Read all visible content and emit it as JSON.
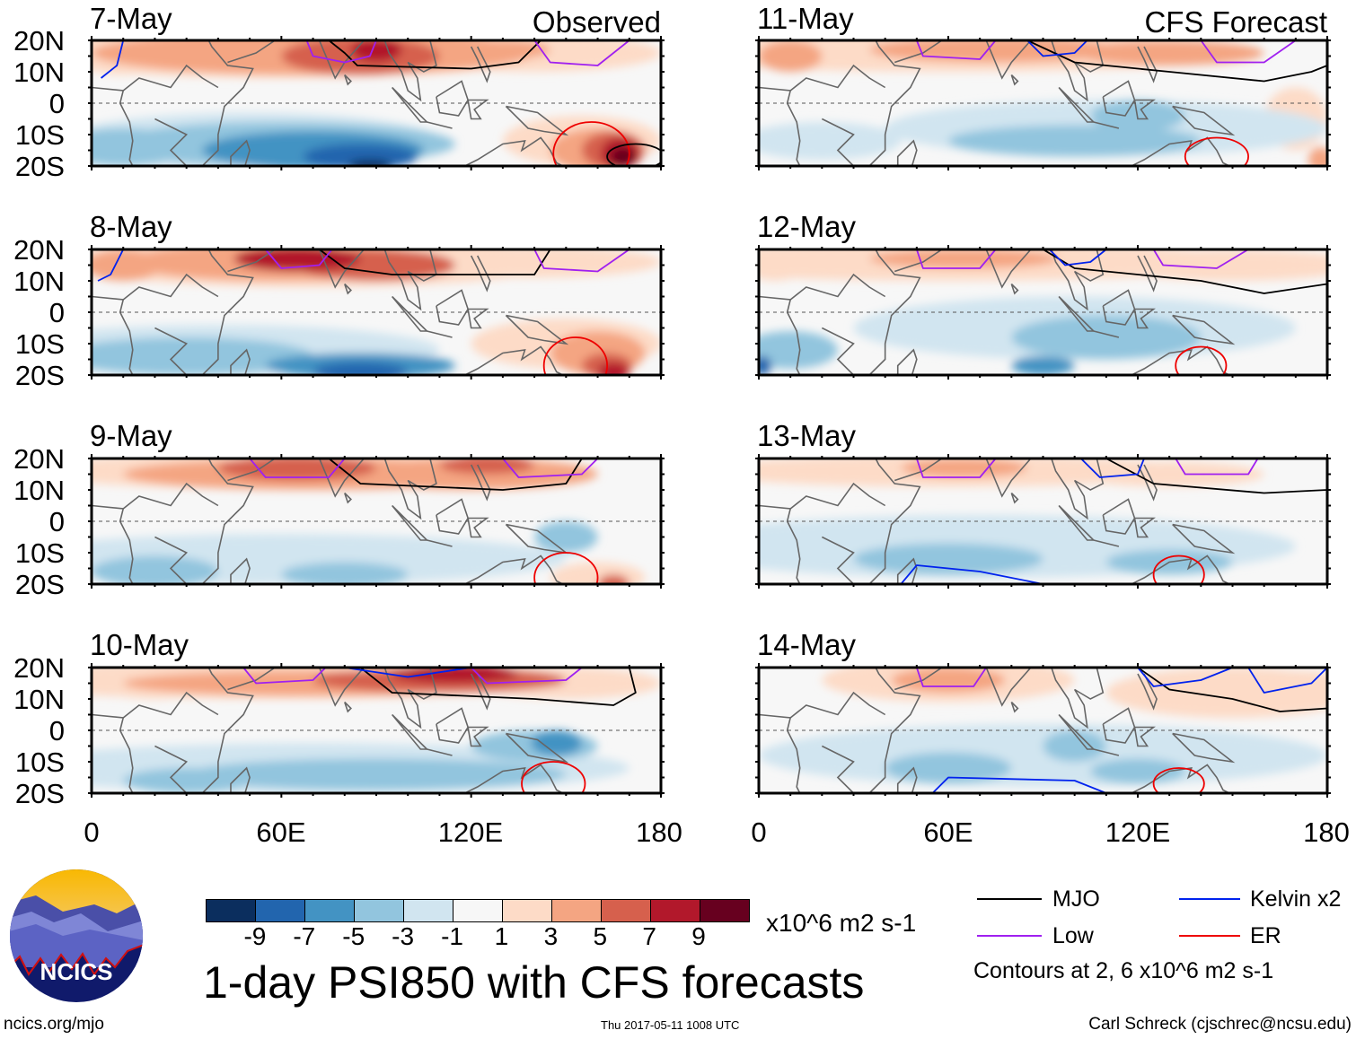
{
  "panels": {
    "observed_label": "Observed",
    "forecast_label": "CFS Forecast",
    "dates": [
      "7-May",
      "8-May",
      "9-May",
      "10-May",
      "11-May",
      "12-May",
      "13-May",
      "14-May"
    ]
  },
  "axes": {
    "lat_labels": [
      "20N",
      "10N",
      "0",
      "10S",
      "20S"
    ],
    "lon_labels": [
      "0",
      "60E",
      "120E",
      "180"
    ]
  },
  "colorbar": {
    "labels": [
      "-9",
      "-7",
      "-5",
      "-3",
      "-1",
      "1",
      "3",
      "5",
      "7",
      "9"
    ],
    "colors": [
      "#0b2e5e",
      "#2265ae",
      "#4393c3",
      "#92c5de",
      "#d1e5f0",
      "#f7f7f7",
      "#fddbc7",
      "#f4a582",
      "#d6604d",
      "#b2182b",
      "#67001f"
    ],
    "units": "x10^6 m2 s-1"
  },
  "title": "1-day PSI850 with CFS forecasts",
  "legend": {
    "items": [
      {
        "label": "MJO",
        "color": "#000000"
      },
      {
        "label": "Kelvin x2",
        "color": "#0022ee"
      },
      {
        "label": "Low",
        "color": "#a020f0"
      },
      {
        "label": "ER",
        "color": "#ee0000"
      }
    ],
    "note": "Contours at 2, 6 x10^6 m2 s-1"
  },
  "logo": {
    "text": "NCICS"
  },
  "footer": {
    "left": "ncics.org/mjo",
    "center": "Thu 2017-05-11 1008 UTC",
    "right": "Carl Schreck (cjschrec@ncsu.edu)"
  }
}
